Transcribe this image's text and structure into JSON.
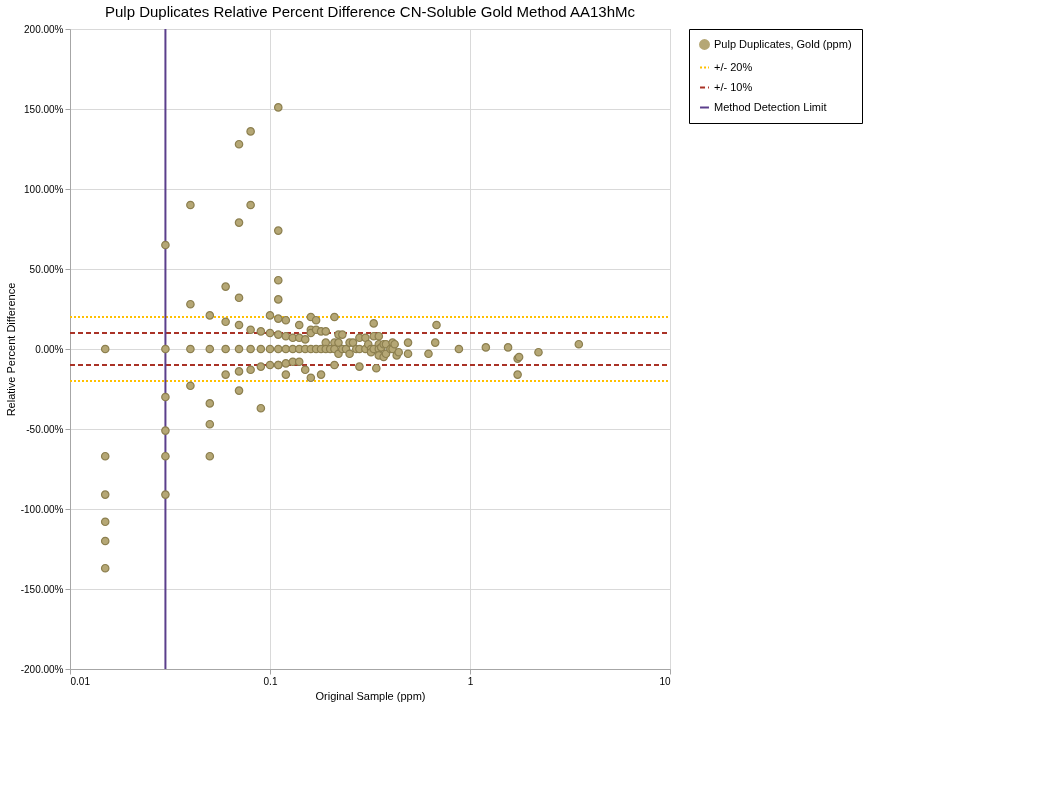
{
  "chart_data": {
    "type": "scatter",
    "title": "Pulp Duplicates Relative Percent Difference CN-Soluble Gold Method AA13hMc",
    "xlabel": "Original Sample (ppm)",
    "ylabel": "Relative Percent Difference",
    "log": "x",
    "grid": true,
    "legend": "right",
    "marker": "circle",
    "xlim": [
      0.01,
      10
    ],
    "xticks": [
      0.01,
      0.1,
      1,
      10
    ],
    "ylim": [
      -200,
      200
    ],
    "yticks": [
      {
        "value": -200,
        "label": "-200.00%"
      },
      {
        "value": -150,
        "label": "-150.00%"
      },
      {
        "value": -100,
        "label": "-100.00%"
      },
      {
        "value": -50,
        "label": "-50.00%"
      },
      {
        "value": 0,
        "label": "0.00%"
      },
      {
        "value": 50,
        "label": "50.00%"
      },
      {
        "value": 100,
        "label": "100.00%"
      },
      {
        "value": 150,
        "label": "150.00%"
      },
      {
        "value": 200,
        "label": "200.00%"
      }
    ],
    "series": [
      {
        "name": "Pulp Duplicates, Gold (ppm)",
        "color": "#b5a775",
        "x": [
          0.015,
          0.015,
          0.015,
          0.015,
          0.015,
          0.015,
          0.03,
          0.03,
          0.03,
          0.03,
          0.03,
          0.03,
          0.04,
          0.04,
          0.04,
          0.04,
          0.05,
          0.05,
          0.05,
          0.05,
          0.05,
          0.06,
          0.06,
          0.06,
          0.06,
          0.07,
          0.07,
          0.07,
          0.07,
          0.07,
          0.07,
          0.07,
          0.08,
          0.08,
          0.08,
          0.08,
          0.08,
          0.09,
          0.09,
          0.09,
          0.09,
          0.1,
          0.1,
          0.1,
          0.1,
          0.11,
          0.11,
          0.11,
          0.11,
          0.11,
          0.11,
          0.11,
          0.11,
          0.11,
          0.12,
          0.12,
          0.12,
          0.12,
          0.12,
          0.13,
          0.13,
          0.13,
          0.14,
          0.14,
          0.14,
          0.14,
          0.15,
          0.15,
          0.15,
          0.16,
          0.16,
          0.16,
          0.16,
          0.16,
          0.17,
          0.17,
          0.17,
          0.18,
          0.18,
          0.18,
          0.19,
          0.19,
          0.19,
          0.2,
          0.21,
          0.21,
          0.21,
          0.21,
          0.22,
          0.22,
          0.22,
          0.23,
          0.23,
          0.24,
          0.25,
          0.25,
          0.26,
          0.27,
          0.28,
          0.28,
          0.28,
          0.3,
          0.3,
          0.31,
          0.32,
          0.32,
          0.33,
          0.33,
          0.33,
          0.34,
          0.35,
          0.35,
          0.35,
          0.35,
          0.36,
          0.37,
          0.37,
          0.38,
          0.38,
          0.4,
          0.41,
          0.41,
          0.42,
          0.43,
          0.44,
          0.49,
          0.49,
          0.62,
          0.67,
          0.68,
          0.88,
          1.2,
          1.55,
          1.73,
          1.76,
          1.73,
          2.2,
          3.5
        ],
        "values": [
          0,
          -67,
          -91,
          -108,
          -120,
          -137,
          65,
          0,
          -30,
          -51,
          -67,
          -91,
          90,
          28,
          0,
          -23,
          21,
          0,
          -34,
          -47,
          -67,
          39,
          17,
          0,
          -16,
          128,
          79,
          32,
          15,
          0,
          -14,
          -26,
          136,
          90,
          12,
          0,
          -13,
          11,
          0,
          -11,
          -37,
          21,
          10,
          0,
          -10,
          151,
          74,
          43,
          31,
          19,
          9,
          0,
          -10,
          -10,
          18,
          8,
          0,
          -9,
          -16,
          7,
          0,
          -8,
          15,
          7,
          0,
          -8,
          6,
          0,
          -13,
          20,
          12,
          10,
          0,
          -18,
          18,
          12,
          0,
          11,
          0,
          -16,
          11,
          4,
          0,
          0,
          20,
          4,
          0,
          -10,
          9,
          4,
          -3,
          9,
          0,
          0,
          4,
          -3,
          4,
          0,
          7,
          0,
          -11,
          7,
          0,
          3,
          0,
          -2,
          16,
          8,
          0,
          -12,
          8,
          3,
          0,
          -4,
          1,
          3,
          -5,
          3,
          -3,
          0,
          4,
          0,
          3,
          -4,
          -2,
          4,
          -3,
          -3,
          4,
          15,
          0,
          1,
          1,
          -6,
          -5,
          -16,
          -2,
          3
        ]
      },
      {
        "name": "+/- 20%",
        "type": "line",
        "marker": "none",
        "color": "#ffc000",
        "line_style": "dotted",
        "x": [
          0.01,
          10
        ],
        "values": [
          20,
          20
        ]
      },
      {
        "type": "line",
        "marker": "none",
        "color": "#ffc000",
        "line_style": "dotted",
        "x": [
          0.01,
          10
        ],
        "values": [
          -20,
          -20
        ]
      },
      {
        "name": "+/- 10%",
        "type": "line",
        "marker": "none",
        "color": "#a93226",
        "line_style": "dashed",
        "x": [
          0.01,
          10
        ],
        "values": [
          10,
          10
        ]
      },
      {
        "type": "line",
        "marker": "none",
        "color": "#a93226",
        "line_style": "dashed",
        "x": [
          0.01,
          10
        ],
        "values": [
          -10,
          -10
        ]
      },
      {
        "name": "Method Detection Limit",
        "type": "line",
        "marker": "none",
        "color": "#5b3f8c",
        "line_style": "solid",
        "x": [
          0.03,
          0.03
        ],
        "values": [
          -200,
          200
        ]
      }
    ]
  }
}
